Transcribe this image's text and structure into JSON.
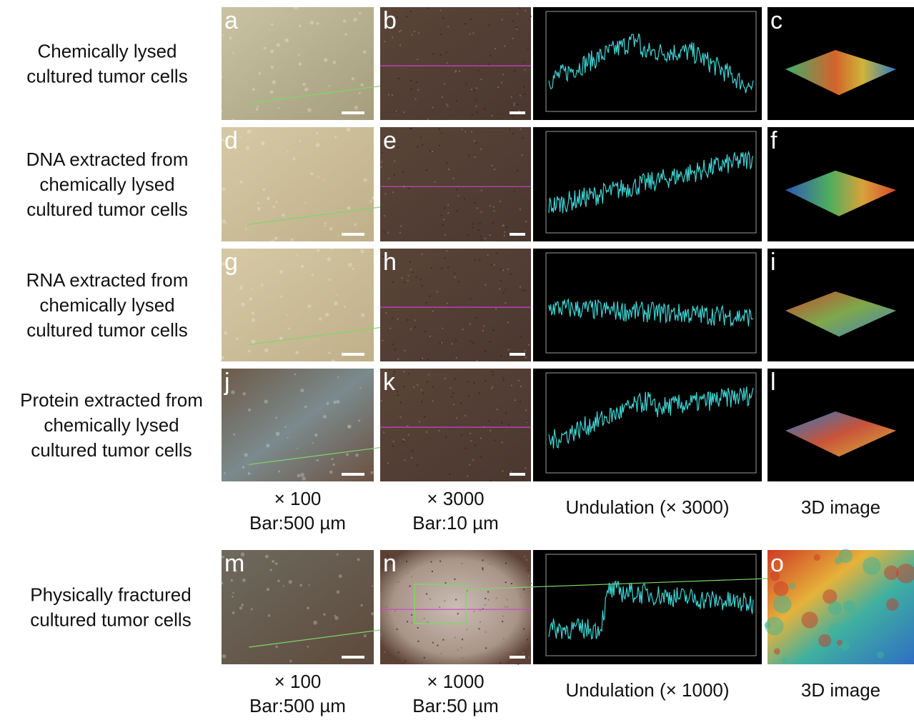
{
  "rows": [
    {
      "label": [
        "Chemically lysed",
        "cultured tumor cells"
      ],
      "letters": [
        "a",
        "b",
        "c"
      ]
    },
    {
      "label": [
        "DNA extracted from",
        "chemically lysed",
        "cultured tumor cells"
      ],
      "letters": [
        "d",
        "e",
        "f"
      ]
    },
    {
      "label": [
        "RNA extracted from",
        "chemically lysed",
        "cultured tumor cells"
      ],
      "letters": [
        "g",
        "h",
        "i"
      ]
    },
    {
      "label": [
        "Protein extracted from",
        "chemically lysed",
        "cultured tumor cells"
      ],
      "letters": [
        "j",
        "k",
        "l"
      ]
    },
    {
      "label": [
        "Physically fractured",
        "cultured tumor cells"
      ],
      "letters": [
        "m",
        "n",
        "o"
      ]
    }
  ],
  "captions_upper": [
    [
      "× 100",
      "Bar:500 µm"
    ],
    [
      "× 3000",
      "Bar:10 µm"
    ],
    [
      "Undulation (× 3000)"
    ],
    [
      "3D image"
    ]
  ],
  "captions_lower": [
    [
      "× 100",
      "Bar:500 µm"
    ],
    [
      "× 1000",
      "Bar:50 µm"
    ],
    [
      "Undulation (× 1000)"
    ],
    [
      "3D image"
    ]
  ]
}
